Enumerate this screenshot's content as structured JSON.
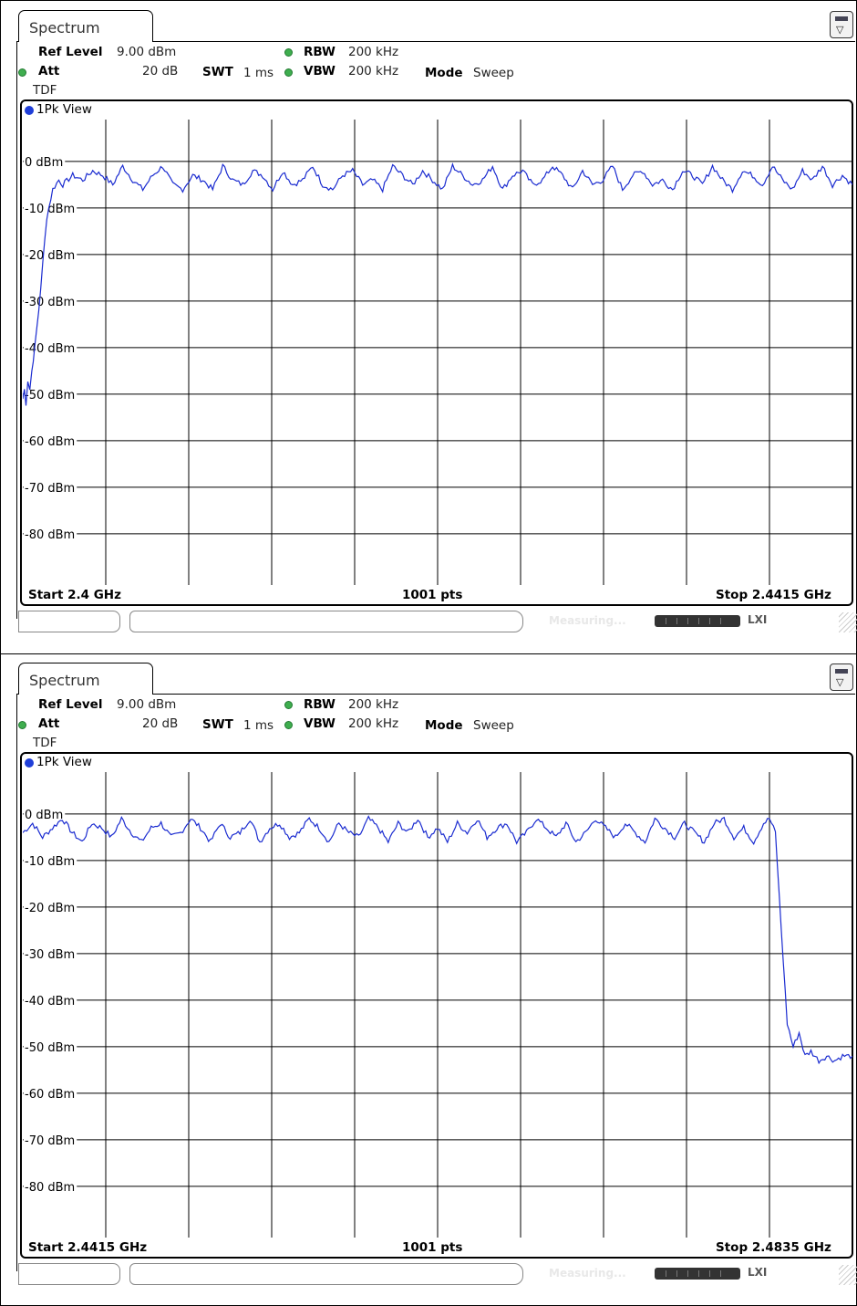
{
  "panels": [
    {
      "tab_label": "Spectrum",
      "ref_level_label": "Ref Level",
      "ref_level_value": "9.00 dBm",
      "att_label": "Att",
      "att_value": "20 dB",
      "swt_label": "SWT",
      "swt_value": "1 ms",
      "rbw_label": "RBW",
      "rbw_value": "200 kHz",
      "vbw_label": "VBW",
      "vbw_value": "200 kHz",
      "mode_label": "Mode",
      "mode_value": "Sweep",
      "tdf": "TDF",
      "view_label": "1Pk View",
      "start_label": "Start 2.4 GHz",
      "pts_label": "1001 pts",
      "stop_label": "Stop 2.4415 GHz",
      "status_text": "Measuring...",
      "status_lxi": "LXI"
    },
    {
      "tab_label": "Spectrum",
      "ref_level_label": "Ref Level",
      "ref_level_value": "9.00 dBm",
      "att_label": "Att",
      "att_value": "20 dB",
      "swt_label": "SWT",
      "swt_value": "1 ms",
      "rbw_label": "RBW",
      "rbw_value": "200 kHz",
      "vbw_label": "VBW",
      "vbw_value": "200 kHz",
      "mode_label": "Mode",
      "mode_value": "Sweep",
      "tdf": "TDF",
      "view_label": "1Pk View",
      "start_label": "Start 2.4415 GHz",
      "pts_label": "1001 pts",
      "stop_label": "Stop 2.4835 GHz",
      "status_text": "Measuring...",
      "status_lxi": "LXI"
    }
  ],
  "chart_data": [
    {
      "type": "line",
      "xlim": [
        2.4,
        2.4415
      ],
      "ylim": [
        -91,
        9
      ],
      "yticks": [
        0,
        -10,
        -20,
        -30,
        -40,
        -50,
        -60,
        -70,
        -80
      ],
      "ytick_labels": [
        "0 dBm",
        "-10 dBm",
        "-20 dBm",
        "-30 dBm",
        "-40 dBm",
        "-50 dBm",
        "-60 dBm",
        "-70 dBm",
        "-80 dBm"
      ],
      "grid": true,
      "trace_color": "#1a2bd0",
      "series": [
        {
          "x": [
            2.4,
            2.40008,
            2.40016,
            2.40025,
            2.40035,
            2.40045,
            2.4006,
            2.4008,
            2.401,
            2.4012,
            2.4015,
            2.4018,
            2.402,
            2.4025,
            2.403,
            2.4035,
            2.404,
            2.4045,
            2.405,
            2.4055,
            2.406,
            2.4065,
            2.407,
            2.4075,
            2.408,
            2.4085,
            2.409,
            2.4095,
            2.41,
            2.4105,
            2.411,
            2.4115,
            2.412,
            2.4125,
            2.413,
            2.4135,
            2.414,
            2.4145,
            2.415,
            2.4155,
            2.416,
            2.4165,
            2.417,
            2.4175,
            2.418,
            2.4185,
            2.419,
            2.4195,
            2.42,
            2.4205,
            2.421,
            2.4215,
            2.422,
            2.4225,
            2.423,
            2.4235,
            2.424,
            2.4245,
            2.425,
            2.4255,
            2.426,
            2.4265,
            2.427,
            2.4275,
            2.428,
            2.4285,
            2.429,
            2.4295,
            2.43,
            2.4305,
            2.431,
            2.4315,
            2.432,
            2.4325,
            2.433,
            2.4335,
            2.434,
            2.4345,
            2.435,
            2.4355,
            2.436,
            2.4365,
            2.437,
            2.4375,
            2.438,
            2.4385,
            2.439,
            2.4395,
            2.44,
            2.4405,
            2.441,
            2.4415
          ],
          "y": [
            -51,
            -49,
            -52,
            -47,
            -49,
            -45,
            -40,
            -32,
            -22,
            -12,
            -6,
            -4,
            -5,
            -3,
            -4,
            -2,
            -3,
            -5,
            -1,
            -4,
            -6,
            -3,
            -1,
            -5,
            -6,
            -3,
            -4,
            -6,
            -1,
            -4,
            -5,
            -2,
            -3,
            -6,
            -2,
            -5,
            -4,
            -1,
            -5,
            -6,
            -3,
            -2,
            -5,
            -4,
            -6,
            -1,
            -3,
            -5,
            -2,
            -4,
            -6,
            -1,
            -3,
            -5,
            -4,
            -1,
            -6,
            -3,
            -2,
            -5,
            -4,
            -1,
            -3,
            -6,
            -2,
            -5,
            -4,
            -1,
            -6,
            -3,
            -2,
            -5,
            -4,
            -6,
            -2,
            -3,
            -5,
            -1,
            -4,
            -6,
            -2,
            -3,
            -5,
            -1,
            -4,
            -6,
            -2,
            -4,
            -1,
            -5,
            -3,
            -5
          ]
        }
      ]
    },
    {
      "type": "line",
      "xlim": [
        2.4415,
        2.4835
      ],
      "ylim": [
        -91,
        9
      ],
      "yticks": [
        0,
        -10,
        -20,
        -30,
        -40,
        -50,
        -60,
        -70,
        -80
      ],
      "ytick_labels": [
        "0 dBm",
        "-10 dBm",
        "-20 dBm",
        "-30 dBm",
        "-40 dBm",
        "-50 dBm",
        "-60 dBm",
        "-70 dBm",
        "-80 dBm"
      ],
      "grid": true,
      "trace_color": "#1a2bd0",
      "series": [
        {
          "x": [
            2.4415,
            2.442,
            2.4425,
            2.443,
            2.4435,
            2.444,
            2.4445,
            2.445,
            2.4455,
            2.446,
            2.4465,
            2.447,
            2.4475,
            2.448,
            2.4485,
            2.449,
            2.4495,
            2.45,
            2.4505,
            2.451,
            2.4515,
            2.452,
            2.4525,
            2.453,
            2.4535,
            2.454,
            2.4545,
            2.455,
            2.4555,
            2.456,
            2.4565,
            2.457,
            2.4575,
            2.458,
            2.4585,
            2.459,
            2.4595,
            2.46,
            2.4605,
            2.461,
            2.4615,
            2.462,
            2.4625,
            2.463,
            2.4635,
            2.464,
            2.4645,
            2.465,
            2.4655,
            2.466,
            2.4665,
            2.467,
            2.4675,
            2.468,
            2.4685,
            2.469,
            2.4695,
            2.47,
            2.4705,
            2.471,
            2.4715,
            2.472,
            2.4725,
            2.473,
            2.4735,
            2.474,
            2.4745,
            2.475,
            2.4755,
            2.476,
            2.4765,
            2.477,
            2.4775,
            2.478,
            2.4785,
            2.479,
            2.4793,
            2.4796,
            2.4799,
            2.4802,
            2.4805,
            2.4808,
            2.4811,
            2.4814,
            2.4818,
            2.4822,
            2.4826,
            2.483,
            2.4835
          ],
          "y": [
            -4,
            -2,
            -5,
            -3,
            -1,
            -4,
            -6,
            -2,
            -3,
            -5,
            -1,
            -4,
            -6,
            -3,
            -2,
            -5,
            -4,
            -1,
            -3,
            -6,
            -2,
            -5,
            -4,
            -1,
            -6,
            -3,
            -2,
            -5,
            -4,
            -1,
            -3,
            -6,
            -2,
            -4,
            -5,
            -1,
            -3,
            -6,
            -2,
            -4,
            -1,
            -5,
            -3,
            -6,
            -2,
            -4,
            -1,
            -5,
            -3,
            -2,
            -6,
            -4,
            -1,
            -3,
            -5,
            -2,
            -6,
            -4,
            -1,
            -3,
            -5,
            -2,
            -4,
            -6,
            -1,
            -3,
            -5,
            -2,
            -4,
            -6,
            -2,
            -1,
            -5,
            -3,
            -6,
            -2,
            -1,
            -4,
            -25,
            -45,
            -50,
            -47,
            -52,
            -51,
            -53,
            -52,
            -53,
            -52,
            -52
          ]
        }
      ]
    }
  ]
}
